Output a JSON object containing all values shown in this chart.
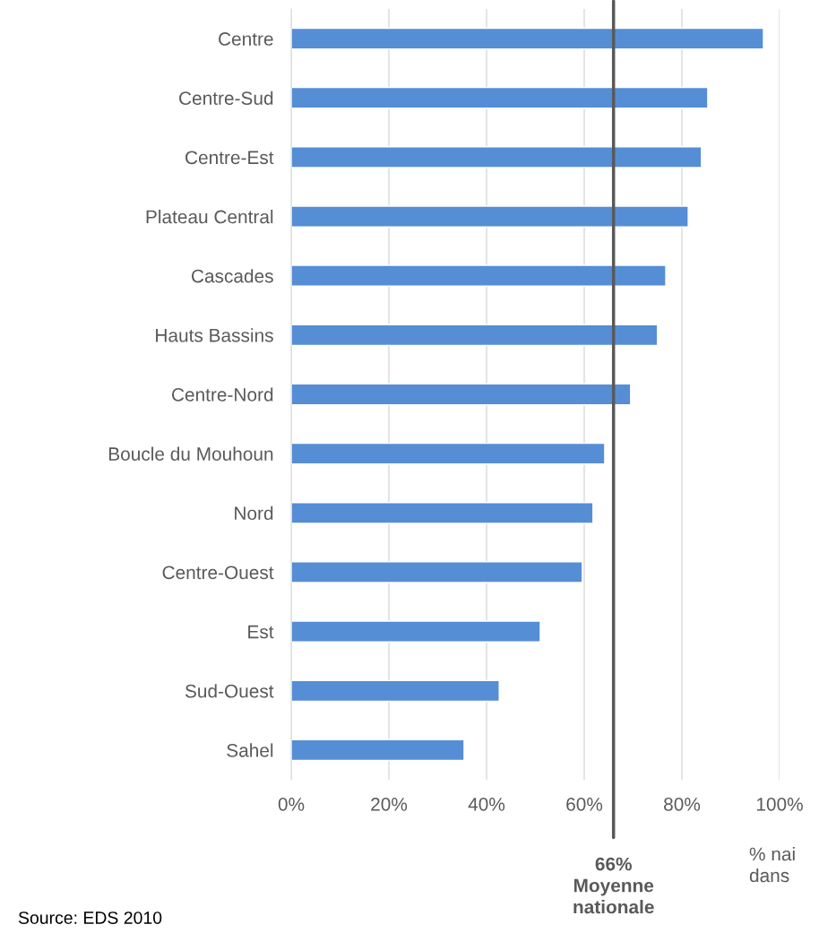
{
  "chart_data": {
    "type": "bar",
    "orientation": "horizontal",
    "categories": [
      "Centre",
      "Centre-Sud",
      "Centre-Est",
      "Plateau Central",
      "Cascades",
      "Hauts Bassins",
      "Centre-Nord",
      "Boucle du Mouhoun",
      "Nord",
      "Centre-Ouest",
      "Est",
      "Sud-Ouest",
      "Sahel"
    ],
    "values": [
      96.7,
      85.3,
      84.0,
      81.3,
      76.7,
      75.0,
      69.5,
      64.2,
      61.8,
      59.6,
      51.0,
      42.6,
      35.4
    ],
    "color": "#558ed5",
    "xlim": [
      0,
      100
    ],
    "xticks": [
      {
        "value": 0,
        "label": "0%"
      },
      {
        "value": 20,
        "label": "20%"
      },
      {
        "value": 40,
        "label": "40%"
      },
      {
        "value": 60,
        "label": "60%"
      },
      {
        "value": 80,
        "label": "80%"
      },
      {
        "value": 100,
        "label": "100%"
      }
    ],
    "grid": "x",
    "xlabel": "% nai\ndans",
    "ref_lines": [
      {
        "axis": "x",
        "value": 66,
        "label": "66%\nMoyenne\nnationale",
        "color": "#595959"
      }
    ],
    "annotations": [
      "Source: EDS 2010"
    ]
  }
}
